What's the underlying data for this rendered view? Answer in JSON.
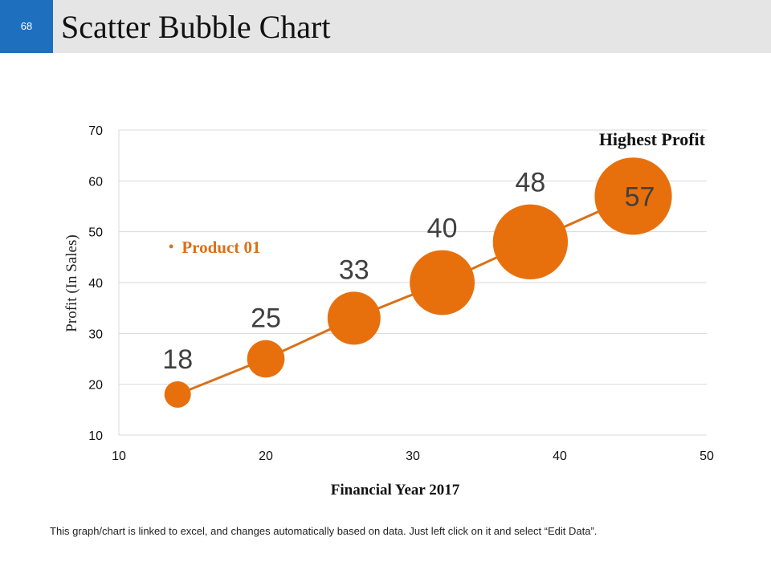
{
  "slide": {
    "number": "68",
    "title": "Scatter Bubble Chart",
    "footnote": "This graph/chart is linked to excel, and changes automatically  based on data. Just left click on it and select “Edit Data”."
  },
  "colors": {
    "header_bg": "#e5e5e5",
    "page_number_bg": "#1f6fbf",
    "bubble": "#e8700c",
    "line": "#d9711a",
    "gridline": "#d9d9d9"
  },
  "chart_data": {
    "type": "scatter",
    "title": "",
    "xlabel": "Financial Year  2017",
    "ylabel": "Profit  (In Sales)",
    "xlim": [
      10,
      50
    ],
    "ylim": [
      10,
      70
    ],
    "xticks": [
      10,
      20,
      30,
      40,
      50
    ],
    "yticks": [
      10,
      20,
      30,
      40,
      50,
      60,
      70
    ],
    "grid": "horizontal",
    "legend_position": "upper-left",
    "series": [
      {
        "name": "Product 01",
        "points": [
          {
            "x": 14,
            "y": 18,
            "size": 1,
            "label": "18"
          },
          {
            "x": 20,
            "y": 25,
            "size": 2,
            "label": "25"
          },
          {
            "x": 26,
            "y": 33,
            "size": 4,
            "label": "33"
          },
          {
            "x": 32,
            "y": 40,
            "size": 6,
            "label": "40"
          },
          {
            "x": 38,
            "y": 48,
            "size": 8,
            "label": "48"
          },
          {
            "x": 45,
            "y": 57,
            "size": 8.5,
            "label": "57"
          }
        ]
      }
    ],
    "annotations": [
      {
        "text": "Highest Profit"
      }
    ]
  }
}
